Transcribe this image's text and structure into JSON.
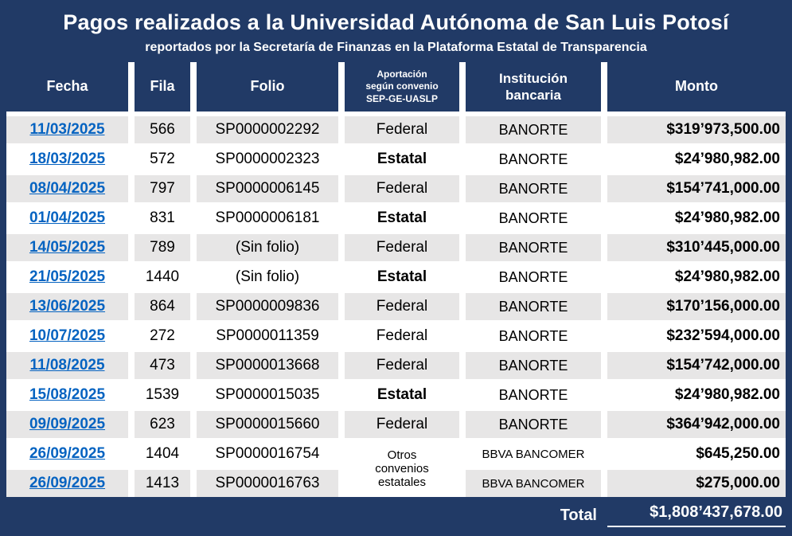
{
  "header": {
    "title": "Pagos realizados a la Universidad Autónoma de San Luis Potosí",
    "subtitle": "reportados por la Secretaría de Finanzas en la Plataforma Estatal de Transparencia"
  },
  "table": {
    "columns": [
      {
        "label": "Fecha"
      },
      {
        "label": "Fila"
      },
      {
        "label": "Folio"
      },
      {
        "lines": [
          "Aportación",
          "según convenio",
          "SEP-GE-UASLP"
        ]
      },
      {
        "lines": [
          "Institución",
          "bancaria"
        ]
      },
      {
        "label": "Monto"
      }
    ],
    "rows": [
      {
        "fecha": "11/03/2025",
        "fila": "566",
        "folio": "SP0000002292",
        "aportacion": "Federal",
        "banco": "BANORTE",
        "monto": "$319’973,500.00"
      },
      {
        "fecha": "18/03/2025",
        "fila": "572",
        "folio": "SP0000002323",
        "aportacion": "Estatal",
        "banco": "BANORTE",
        "monto": "$24’980,982.00"
      },
      {
        "fecha": "08/04/2025",
        "fila": "797",
        "folio": "SP0000006145",
        "aportacion": "Federal",
        "banco": "BANORTE",
        "monto": "$154’741,000.00"
      },
      {
        "fecha": "01/04/2025",
        "fila": "831",
        "folio": "SP0000006181",
        "aportacion": "Estatal",
        "banco": "BANORTE",
        "monto": "$24’980,982.00"
      },
      {
        "fecha": "14/05/2025",
        "fila": "789",
        "folio": "(Sin folio)",
        "aportacion": "Federal",
        "banco": "BANORTE",
        "monto": "$310’445,000.00"
      },
      {
        "fecha": "21/05/2025",
        "fila": "1440",
        "folio": "(Sin folio)",
        "aportacion": "Estatal",
        "banco": "BANORTE",
        "monto": "$24’980,982.00"
      },
      {
        "fecha": "13/06/2025",
        "fila": "864",
        "folio": "SP0000009836",
        "aportacion": "Federal",
        "banco": "BANORTE",
        "monto": "$170’156,000.00"
      },
      {
        "fecha": "10/07/2025",
        "fila": "272",
        "folio": "SP0000011359",
        "aportacion": "Federal",
        "banco": "BANORTE",
        "monto": "$232’594,000.00"
      },
      {
        "fecha": "11/08/2025",
        "fila": "473",
        "folio": "SP0000013668",
        "aportacion": "Federal",
        "banco": "BANORTE",
        "monto": "$154’742,000.00"
      },
      {
        "fecha": "15/08/2025",
        "fila": "1539",
        "folio": "SP0000015035",
        "aportacion": "Estatal",
        "banco": "BANORTE",
        "monto": "$24’980,982.00"
      },
      {
        "fecha": "09/09/2025",
        "fila": "623",
        "folio": "SP0000015660",
        "aportacion": "Federal",
        "banco": "BANORTE",
        "monto": "$364’942,000.00"
      },
      {
        "fecha": "26/09/2025",
        "fila": "1404",
        "folio": "SP0000016754",
        "aportacion": "Otros convenios estatales",
        "banco": "BBVA BANCOMER",
        "monto": "$645,250.00"
      },
      {
        "fecha": "26/09/2025",
        "fila": "1413",
        "folio": "SP0000016763",
        "aportacion": "",
        "banco": "BBVA BANCOMER",
        "monto": "$275,000.00"
      }
    ],
    "total_label": "Total",
    "total_value": "$1,808’437,678.00"
  },
  "colors": {
    "background_navy": "#213A66",
    "row_gray": "#E7E6E6",
    "link_blue": "#0563C1",
    "text_white": "#FFFFFF",
    "text_black": "#000000"
  }
}
